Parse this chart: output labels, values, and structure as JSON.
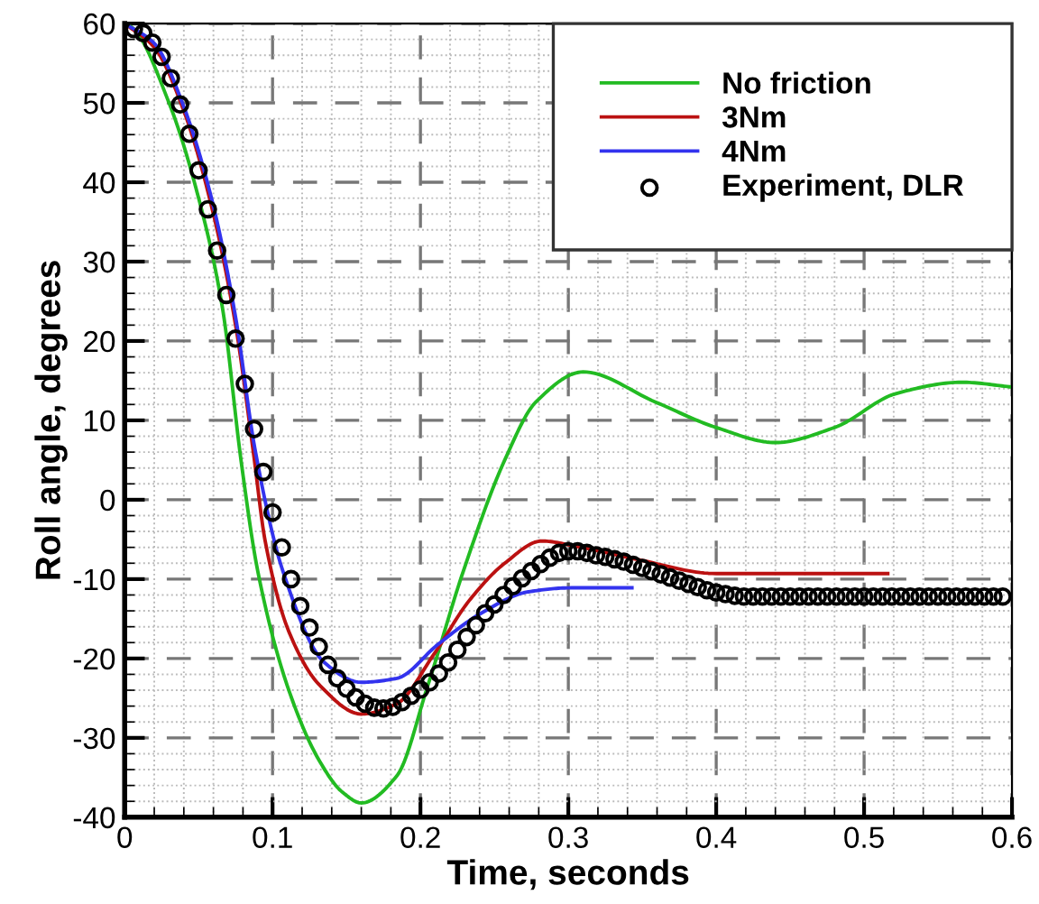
{
  "chart_data": {
    "type": "line",
    "xlabel": "Time, seconds",
    "ylabel": "Roll angle, degrees",
    "xlim": [
      0,
      0.6
    ],
    "ylim": [
      -40,
      60
    ],
    "xticks": [
      0,
      0.1,
      0.2,
      0.3,
      0.4,
      0.5,
      0.6
    ],
    "yticks": [
      -40,
      -30,
      -20,
      -10,
      0,
      10,
      20,
      30,
      40,
      50,
      60
    ],
    "grid": true,
    "legend": "top right",
    "series": [
      {
        "name": "No friction",
        "color": "#22bb22",
        "line_style": "solid",
        "x": [
          0,
          0.005,
          0.03,
          0.05,
          0.066,
          0.079,
          0.09,
          0.111,
          0.132,
          0.147,
          0.16,
          0.184,
          0.205,
          0.229,
          0.257,
          0.278,
          0.31,
          0.359,
          0.4,
          0.44,
          0.48,
          0.522,
          0.566,
          0.6
        ],
        "values": [
          60,
          59.5,
          50,
          38,
          24.3,
          4.5,
          -9,
          -24,
          -33,
          -36.8,
          -38.2,
          -34.8,
          -23.4,
          -9,
          5,
          12.3,
          16.1,
          12.3,
          9.1,
          7.2,
          9.1,
          13.4,
          14.8,
          14.2
        ]
      },
      {
        "name": "3Nm",
        "color": "#bb1111",
        "line_style": "solid",
        "x": [
          0,
          0.02,
          0.04,
          0.06,
          0.075,
          0.087,
          0.095,
          0.111,
          0.132,
          0.16,
          0.184,
          0.209,
          0.233,
          0.257,
          0.282,
          0.306,
          0.346,
          0.4,
          0.516
        ],
        "values": [
          60,
          57,
          49,
          36,
          22,
          6,
          -5.2,
          -16.6,
          -23.4,
          -27,
          -25.7,
          -19.5,
          -12.7,
          -8,
          -5.2,
          -5.9,
          -7.5,
          -9.3,
          -9.3
        ]
      },
      {
        "name": "4Nm",
        "color": "#3333ee",
        "line_style": "solid",
        "x": [
          0,
          0.02,
          0.04,
          0.06,
          0.075,
          0.088,
          0.107,
          0.135,
          0.16,
          0.184,
          0.212,
          0.241,
          0.273,
          0.302,
          0.343
        ],
        "values": [
          60,
          57.5,
          49.5,
          37,
          23,
          6.5,
          -9,
          -20.5,
          -23,
          -22.5,
          -18.2,
          -14.3,
          -11.6,
          -11.1,
          -11.1
        ]
      },
      {
        "name": "Experiment, DLR",
        "type": "scatter",
        "color": "#000000",
        "marker": "circle",
        "x": [
          0.00625,
          0.0125,
          0.01875,
          0.025,
          0.03125,
          0.0375,
          0.04375,
          0.05,
          0.05625,
          0.0625,
          0.06875,
          0.075,
          0.08125,
          0.0875,
          0.09375,
          0.1,
          0.10625,
          0.1125,
          0.11875,
          0.125,
          0.13125,
          0.1375,
          0.14375,
          0.15,
          0.15625,
          0.1625,
          0.16875,
          0.175,
          0.18125,
          0.1875,
          0.19375,
          0.2,
          0.20625,
          0.2125,
          0.21875,
          0.225,
          0.23125,
          0.2375,
          0.24375,
          0.25,
          0.25625,
          0.2625,
          0.26875,
          0.275,
          0.28125,
          0.2875,
          0.29375,
          0.3,
          0.30625,
          0.3125,
          0.31875,
          0.325,
          0.33125,
          0.3375,
          0.34375,
          0.35,
          0.35625,
          0.3625,
          0.36875,
          0.375,
          0.38125,
          0.3875,
          0.39375,
          0.4,
          0.40625,
          0.4125,
          0.41875,
          0.425,
          0.43125,
          0.4375,
          0.44375,
          0.45,
          0.45625,
          0.4625,
          0.46875,
          0.475,
          0.48125,
          0.4875,
          0.49375,
          0.5,
          0.50625,
          0.5125,
          0.51875,
          0.525,
          0.53125,
          0.5375,
          0.54375,
          0.55,
          0.55625,
          0.5625,
          0.56875,
          0.575,
          0.58125,
          0.5875,
          0.59375
        ],
        "values": [
          59.3,
          58.8,
          57.6,
          55.8,
          53.1,
          49.8,
          46.1,
          41.5,
          36.6,
          31.4,
          25.8,
          20.3,
          14.6,
          8.9,
          3.5,
          -1.6,
          -6.0,
          -10.0,
          -13.4,
          -16.1,
          -18.5,
          -20.8,
          -22.5,
          -23.8,
          -24.9,
          -25.7,
          -26.2,
          -26.3,
          -26.1,
          -25.5,
          -24.7,
          -23.9,
          -23.0,
          -21.9,
          -20.5,
          -18.9,
          -17.3,
          -15.8,
          -14.3,
          -13.2,
          -12.0,
          -10.9,
          -9.9,
          -9.0,
          -8.1,
          -7.3,
          -6.7,
          -6.5,
          -6.5,
          -6.7,
          -7.0,
          -7.2,
          -7.5,
          -7.8,
          -8.2,
          -8.6,
          -9.0,
          -9.4,
          -9.8,
          -10.2,
          -10.6,
          -11.0,
          -11.4,
          -11.7,
          -11.9,
          -12.1,
          -12.2,
          -12.2,
          -12.2,
          -12.2,
          -12.2,
          -12.2,
          -12.2,
          -12.2,
          -12.2,
          -12.2,
          -12.2,
          -12.2,
          -12.2,
          -12.2,
          -12.2,
          -12.2,
          -12.2,
          -12.2,
          -12.2,
          -12.2,
          -12.2,
          -12.2,
          -12.2,
          -12.2,
          -12.2,
          -12.2,
          -12.2,
          -12.2,
          -12.2
        ]
      }
    ]
  }
}
